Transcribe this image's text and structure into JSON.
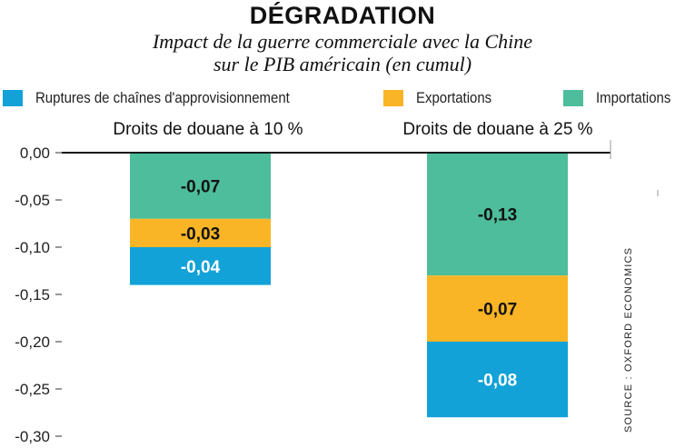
{
  "chart_data": {
    "type": "bar",
    "stacked": true,
    "title": "DÉGRADATION",
    "subtitle_lines": [
      "Impact de la guerre commerciale avec la Chine",
      "sur le PIB américain (en cumul)"
    ],
    "categories": [
      "Droits de douane à 10 %",
      "Droits de douane à 25 %"
    ],
    "stack_order": [
      "Importations",
      "Exportations",
      "Ruptures de chaînes d'approvisionnement"
    ],
    "series": [
      {
        "name": "Importations",
        "color": "#4dbd9b",
        "values": [
          -0.07,
          -0.13
        ],
        "labels": [
          "-0,07",
          "-0,13"
        ],
        "label_color": "#111111"
      },
      {
        "name": "Exportations",
        "color": "#f9b526",
        "values": [
          -0.03,
          -0.07
        ],
        "labels": [
          "-0,03",
          "-0,07"
        ],
        "label_color": "#111111"
      },
      {
        "name": "Ruptures de chaînes d'approvisionnement",
        "color": "#13a2d8",
        "values": [
          -0.04,
          -0.08
        ],
        "labels": [
          "-0,04",
          "-0,08"
        ],
        "label_color": "#ffffff"
      }
    ],
    "legend_order": [
      "Ruptures de chaînes d'approvisionnement",
      "Exportations",
      "Importations"
    ],
    "ylim": [
      -0.3,
      0.0
    ],
    "yticks": [
      0.0,
      -0.05,
      -0.1,
      -0.15,
      -0.2,
      -0.25,
      -0.3
    ],
    "ytick_labels": [
      "0,00",
      "-0,05",
      "-0,10",
      "-0,15",
      "-0,20",
      "-0,25",
      "-0,30"
    ],
    "grid": false,
    "legend_position": "top",
    "source": "SOURCE : OXFORD ECONOMICS"
  }
}
